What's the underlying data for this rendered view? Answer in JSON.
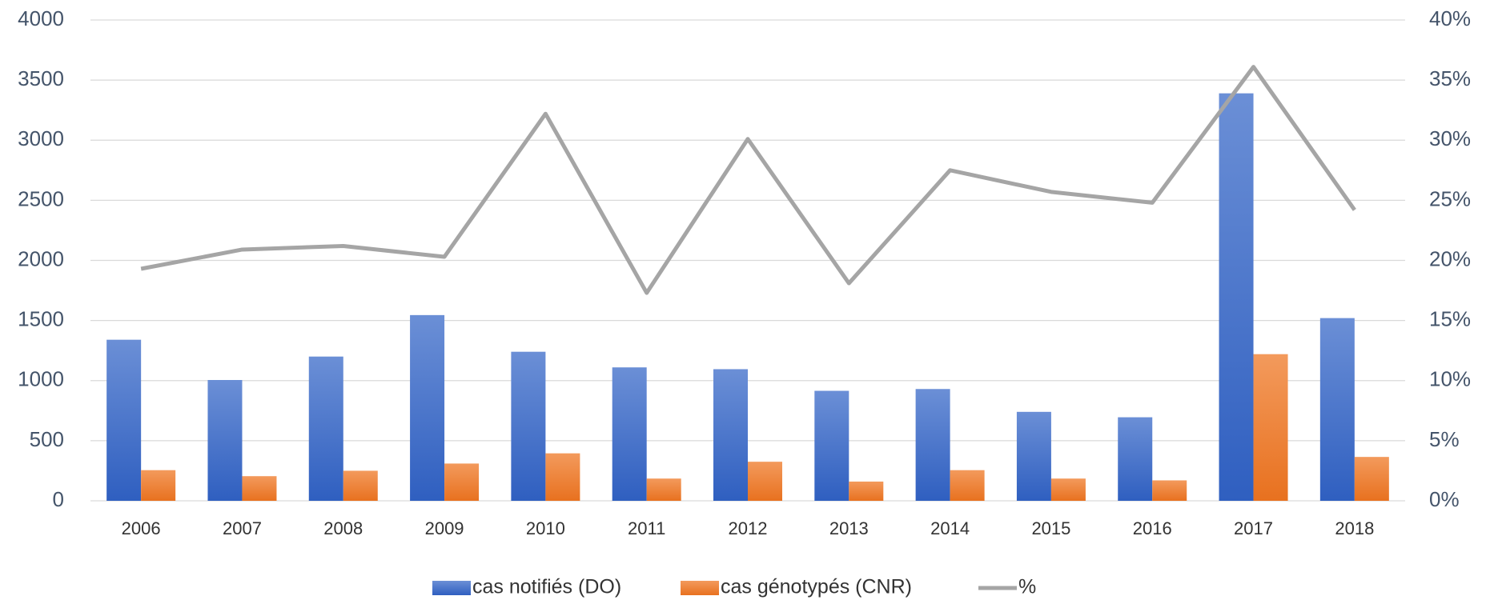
{
  "chart_data": {
    "type": "bar",
    "categories": [
      "2006",
      "2007",
      "2008",
      "2009",
      "2010",
      "2011",
      "2012",
      "2013",
      "2014",
      "2015",
      "2016",
      "2017",
      "2018"
    ],
    "series": [
      {
        "name": "cas notifiés (DO)",
        "color": "#4472c4",
        "values": [
          1340,
          1005,
          1200,
          1545,
          1240,
          1110,
          1095,
          915,
          930,
          740,
          695,
          3390,
          1520
        ]
      },
      {
        "name": "cas génotypés (CNR)",
        "color": "#ed7d31",
        "values": [
          255,
          205,
          250,
          310,
          395,
          185,
          325,
          160,
          255,
          185,
          170,
          1220,
          365
        ]
      },
      {
        "name": "%",
        "color": "#a5a5a5",
        "type": "line",
        "axis": "y2",
        "values": [
          19.3,
          20.9,
          21.2,
          20.3,
          32.2,
          17.3,
          30.1,
          18.1,
          27.5,
          25.7,
          24.8,
          36.1,
          24.2
        ]
      }
    ],
    "ylim": [
      0,
      4000
    ],
    "yticks": [
      0,
      500,
      1000,
      1500,
      2000,
      2500,
      3000,
      3500,
      4000
    ],
    "y2lim": [
      0,
      40
    ],
    "y2ticks": [
      {
        "value": 0,
        "label": "0%"
      },
      {
        "value": 5,
        "label": "5%"
      },
      {
        "value": 10,
        "label": "10%"
      },
      {
        "value": 15,
        "label": "15%"
      },
      {
        "value": 20,
        "label": "20%"
      },
      {
        "value": 25,
        "label": "25%"
      },
      {
        "value": 30,
        "label": "30%"
      },
      {
        "value": 35,
        "label": "35%"
      },
      {
        "value": 40,
        "label": "40%"
      }
    ],
    "grid": true,
    "legend": "bottom"
  }
}
